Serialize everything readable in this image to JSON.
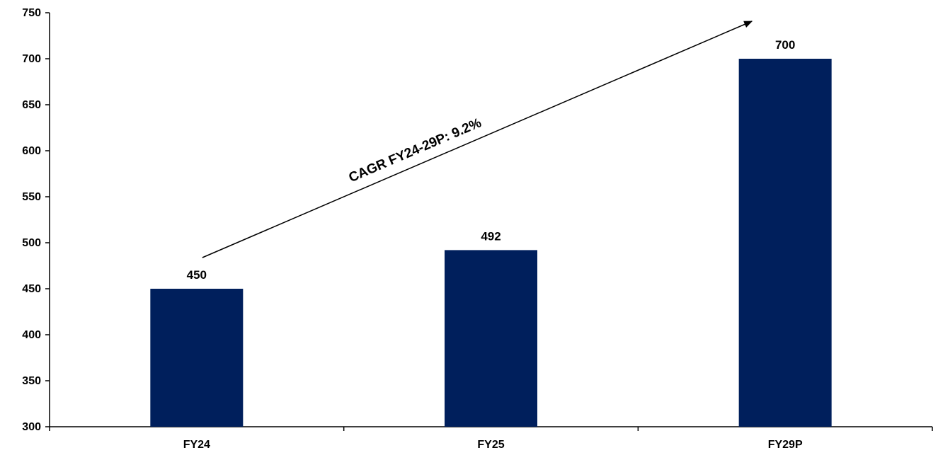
{
  "chart_data": {
    "type": "bar",
    "categories": [
      "FY24",
      "FY25",
      "FY29P"
    ],
    "values": [
      450,
      492,
      700
    ],
    "data_labels": [
      "450",
      "492",
      "700"
    ],
    "title": "",
    "xlabel": "",
    "ylabel": "",
    "ylim": [
      300,
      750
    ],
    "yticks": [
      300,
      350,
      400,
      450,
      500,
      550,
      600,
      650,
      700,
      750
    ],
    "grid": false,
    "legend": "none",
    "bar_color": "#001F5C",
    "annotation": {
      "text": "CAGR FY24-29P: 9.2%",
      "type": "arrow",
      "from_category": "FY24",
      "to_category": "FY29P"
    }
  }
}
